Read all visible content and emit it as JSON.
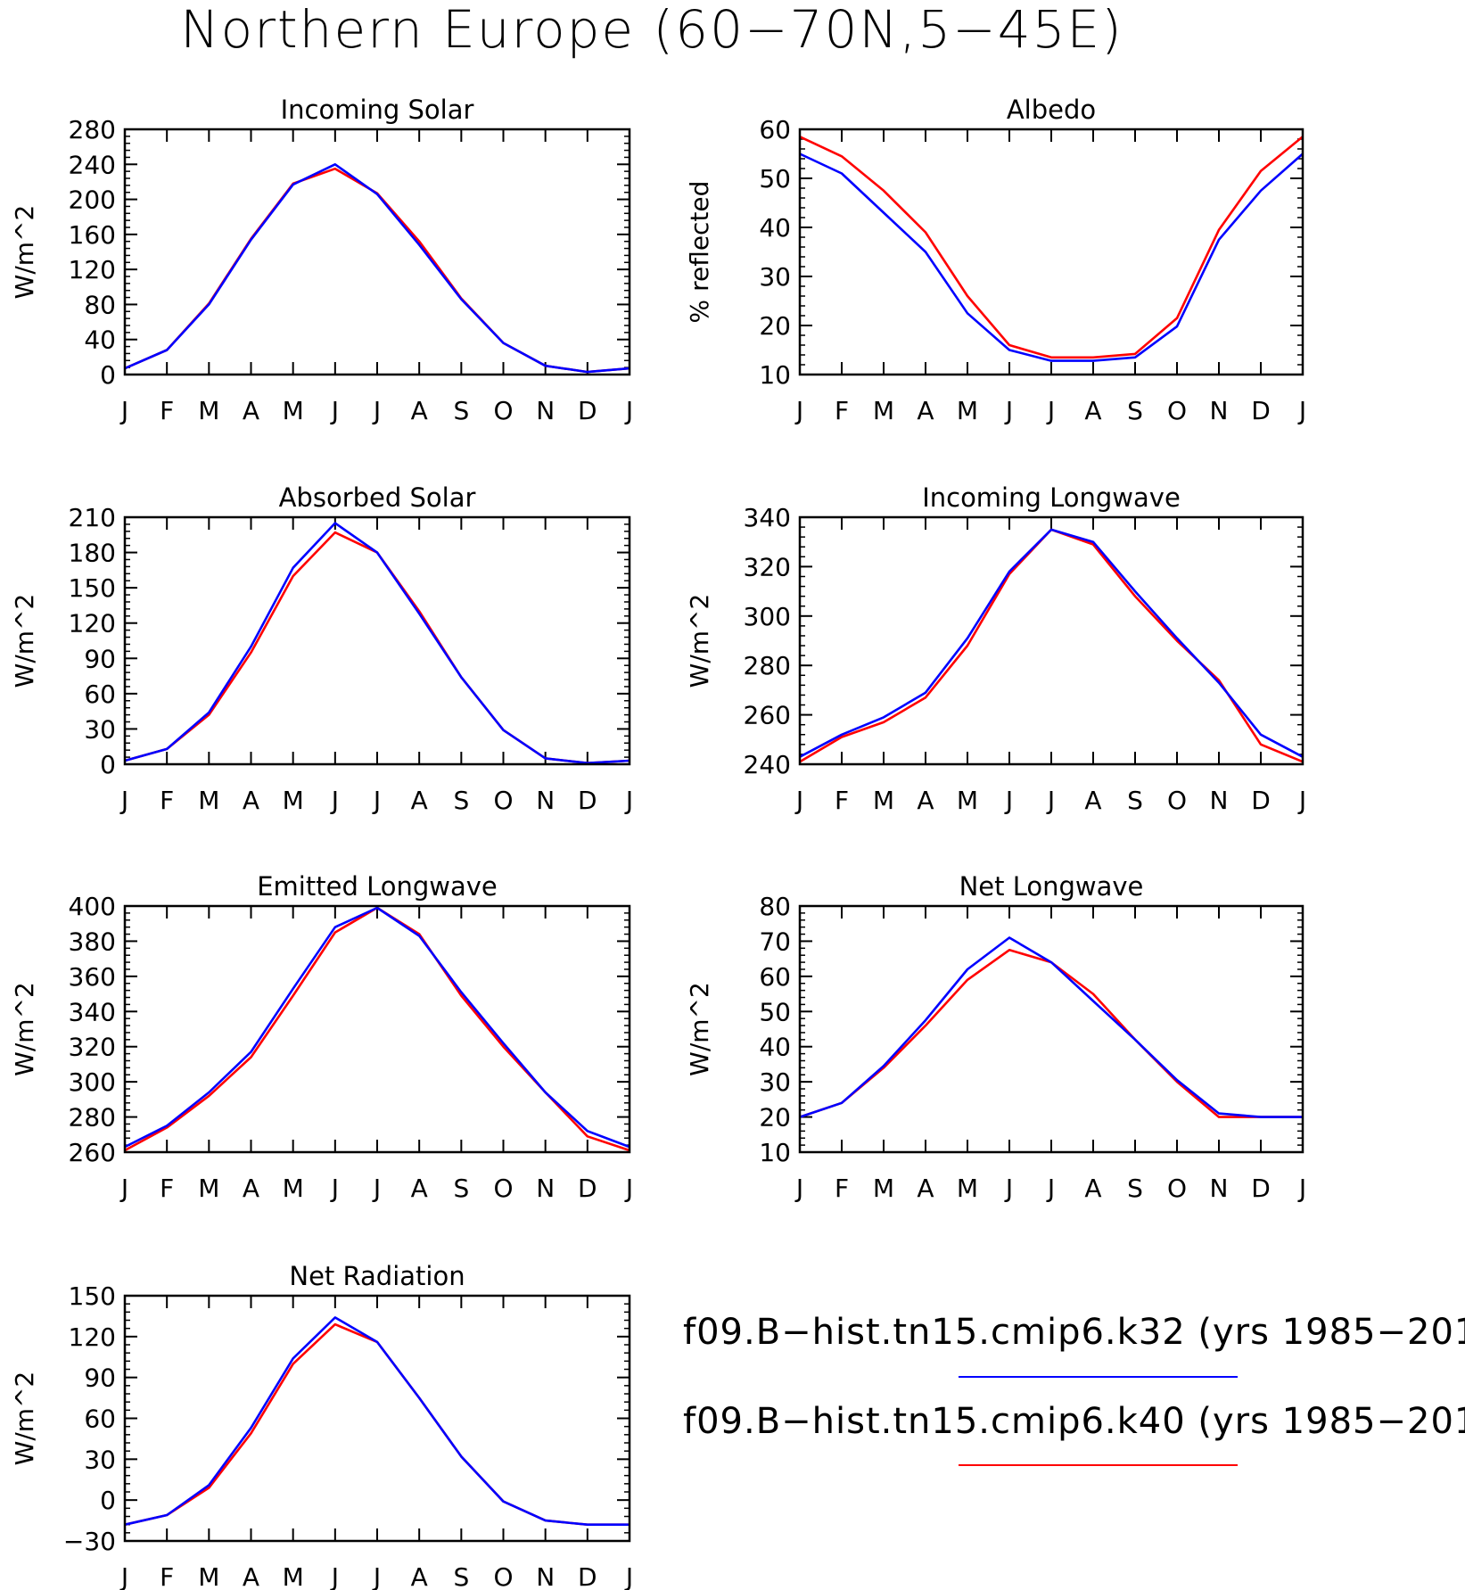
{
  "figure": {
    "title": "Northern Europe (60−70N,5−45E)"
  },
  "legend": {
    "placement": "bottom-right",
    "entries": [
      {
        "label": "f09.B−hist.tn15.cmip6.k32 (yrs 1985−201",
        "color": "#0000ff"
      },
      {
        "label": "f09.B−hist.tn15.cmip6.k40 (yrs 1985−201",
        "color": "#ff0000"
      }
    ]
  },
  "chart_data": [
    {
      "type": "line",
      "title": "Incoming Solar",
      "ylabel": "W/m^2",
      "categories": [
        "J",
        "F",
        "M",
        "A",
        "M",
        "J",
        "J",
        "A",
        "S",
        "O",
        "N",
        "D",
        "J"
      ],
      "ylim": [
        0,
        280
      ],
      "yticks": [
        0,
        40,
        80,
        120,
        160,
        200,
        240,
        280
      ],
      "series": [
        {
          "name": "f09.B−hist.tn15.cmip6.k40 (yrs 1985−201",
          "color": "#ff0000",
          "values": [
            7,
            28,
            81,
            155,
            218,
            235,
            207,
            152,
            87,
            36,
            10,
            3,
            7
          ]
        },
        {
          "name": "f09.B−hist.tn15.cmip6.k32 (yrs 1985−201",
          "color": "#0000ff",
          "values": [
            7,
            28,
            80,
            154,
            217,
            240,
            206,
            148,
            86,
            36,
            10,
            3,
            7
          ]
        }
      ]
    },
    {
      "type": "line",
      "title": "Albedo",
      "ylabel": "% reflected",
      "categories": [
        "J",
        "F",
        "M",
        "A",
        "M",
        "J",
        "J",
        "A",
        "S",
        "O",
        "N",
        "D",
        "J"
      ],
      "ylim": [
        10,
        60
      ],
      "yticks": [
        10,
        20,
        30,
        40,
        50,
        60
      ],
      "series": [
        {
          "name": "f09.B−hist.tn15.cmip6.k40 (yrs 1985−201",
          "color": "#ff0000",
          "values": [
            58.5,
            54.5,
            47.5,
            39,
            26,
            16,
            13.5,
            13.5,
            14.2,
            21.5,
            39.5,
            51.5,
            58.5
          ]
        },
        {
          "name": "f09.B−hist.tn15.cmip6.k32 (yrs 1985−201",
          "color": "#0000ff",
          "values": [
            55,
            51,
            43,
            35,
            22.5,
            15,
            12.8,
            12.8,
            13.5,
            19.8,
            37.5,
            47.5,
            55
          ]
        }
      ]
    },
    {
      "type": "line",
      "title": "Absorbed Solar",
      "ylabel": "W/m^2",
      "categories": [
        "J",
        "F",
        "M",
        "A",
        "M",
        "J",
        "J",
        "A",
        "S",
        "O",
        "N",
        "D",
        "J"
      ],
      "ylim": [
        0,
        210
      ],
      "yticks": [
        0,
        30,
        60,
        90,
        120,
        150,
        180,
        210
      ],
      "series": [
        {
          "name": "f09.B−hist.tn15.cmip6.k40 (yrs 1985−201",
          "color": "#ff0000",
          "values": [
            3,
            13,
            42,
            95,
            160,
            197,
            180,
            130,
            74,
            29,
            5,
            1,
            3
          ]
        },
        {
          "name": "f09.B−hist.tn15.cmip6.k32 (yrs 1985−201",
          "color": "#0000ff",
          "values": [
            3,
            13,
            44,
            100,
            167,
            205,
            180,
            128,
            74,
            29,
            5,
            1,
            3
          ]
        }
      ]
    },
    {
      "type": "line",
      "title": "Incoming Longwave",
      "ylabel": "W/m^2",
      "categories": [
        "J",
        "F",
        "M",
        "A",
        "M",
        "J",
        "J",
        "A",
        "S",
        "O",
        "N",
        "D",
        "J"
      ],
      "ylim": [
        240,
        340
      ],
      "yticks": [
        240,
        260,
        280,
        300,
        320,
        340
      ],
      "series": [
        {
          "name": "f09.B−hist.tn15.cmip6.k40 (yrs 1985−201",
          "color": "#ff0000",
          "values": [
            241,
            251,
            257,
            267,
            288,
            317,
            335,
            329,
            308,
            290,
            274,
            248,
            241
          ]
        },
        {
          "name": "f09.B−hist.tn15.cmip6.k32 (yrs 1985−201",
          "color": "#0000ff",
          "values": [
            243,
            252,
            259,
            269,
            291,
            318,
            335,
            330,
            310,
            291,
            273,
            252,
            243
          ]
        }
      ]
    },
    {
      "type": "line",
      "title": "Emitted Longwave",
      "ylabel": "W/m^2",
      "categories": [
        "J",
        "F",
        "M",
        "A",
        "M",
        "J",
        "J",
        "A",
        "S",
        "O",
        "N",
        "D",
        "J"
      ],
      "ylim": [
        260,
        400
      ],
      "yticks": [
        260,
        280,
        300,
        320,
        340,
        360,
        380,
        400
      ],
      "series": [
        {
          "name": "f09.B−hist.tn15.cmip6.k40 (yrs 1985−201",
          "color": "#ff0000",
          "values": [
            261,
            274,
            292,
            314,
            349,
            385,
            399,
            384,
            349,
            320,
            294,
            269,
            261
          ]
        },
        {
          "name": "f09.B−hist.tn15.cmip6.k32 (yrs 1985−201",
          "color": "#0000ff",
          "values": [
            263,
            275,
            294,
            317,
            353,
            388,
            399,
            383,
            351,
            322,
            294,
            272,
            263
          ]
        }
      ]
    },
    {
      "type": "line",
      "title": "Net Longwave",
      "ylabel": "W/m^2",
      "categories": [
        "J",
        "F",
        "M",
        "A",
        "M",
        "J",
        "J",
        "A",
        "S",
        "O",
        "N",
        "D",
        "J"
      ],
      "ylim": [
        10,
        80
      ],
      "yticks": [
        10,
        20,
        30,
        40,
        50,
        60,
        70,
        80
      ],
      "series": [
        {
          "name": "f09.B−hist.tn15.cmip6.k40 (yrs 1985−201",
          "color": "#ff0000",
          "values": [
            20,
            24,
            34,
            46,
            59,
            67.5,
            64,
            55,
            42,
            30,
            20,
            20,
            20
          ]
        },
        {
          "name": "f09.B−hist.tn15.cmip6.k32 (yrs 1985−201",
          "color": "#0000ff",
          "values": [
            20,
            24,
            34.5,
            47.5,
            62,
            71,
            64,
            53,
            42,
            30.5,
            21,
            20,
            20
          ]
        }
      ]
    },
    {
      "type": "line",
      "title": "Net Radiation",
      "ylabel": "W/m^2",
      "categories": [
        "J",
        "F",
        "M",
        "A",
        "M",
        "J",
        "J",
        "A",
        "S",
        "O",
        "N",
        "D",
        "J"
      ],
      "ylim": [
        -30,
        150
      ],
      "yticks": [
        -30,
        0,
        30,
        60,
        90,
        120,
        150
      ],
      "series": [
        {
          "name": "f09.B−hist.tn15.cmip6.k40 (yrs 1985−201",
          "color": "#ff0000",
          "values": [
            -18,
            -11,
            9,
            49,
            100,
            129,
            116,
            75,
            32,
            -1,
            -15,
            -18,
            -18
          ]
        },
        {
          "name": "f09.B−hist.tn15.cmip6.k32 (yrs 1985−201",
          "color": "#0000ff",
          "values": [
            -18,
            -11,
            11,
            53,
            104,
            134,
            116,
            75,
            32,
            -1,
            -15,
            -18,
            -18
          ]
        }
      ]
    }
  ]
}
